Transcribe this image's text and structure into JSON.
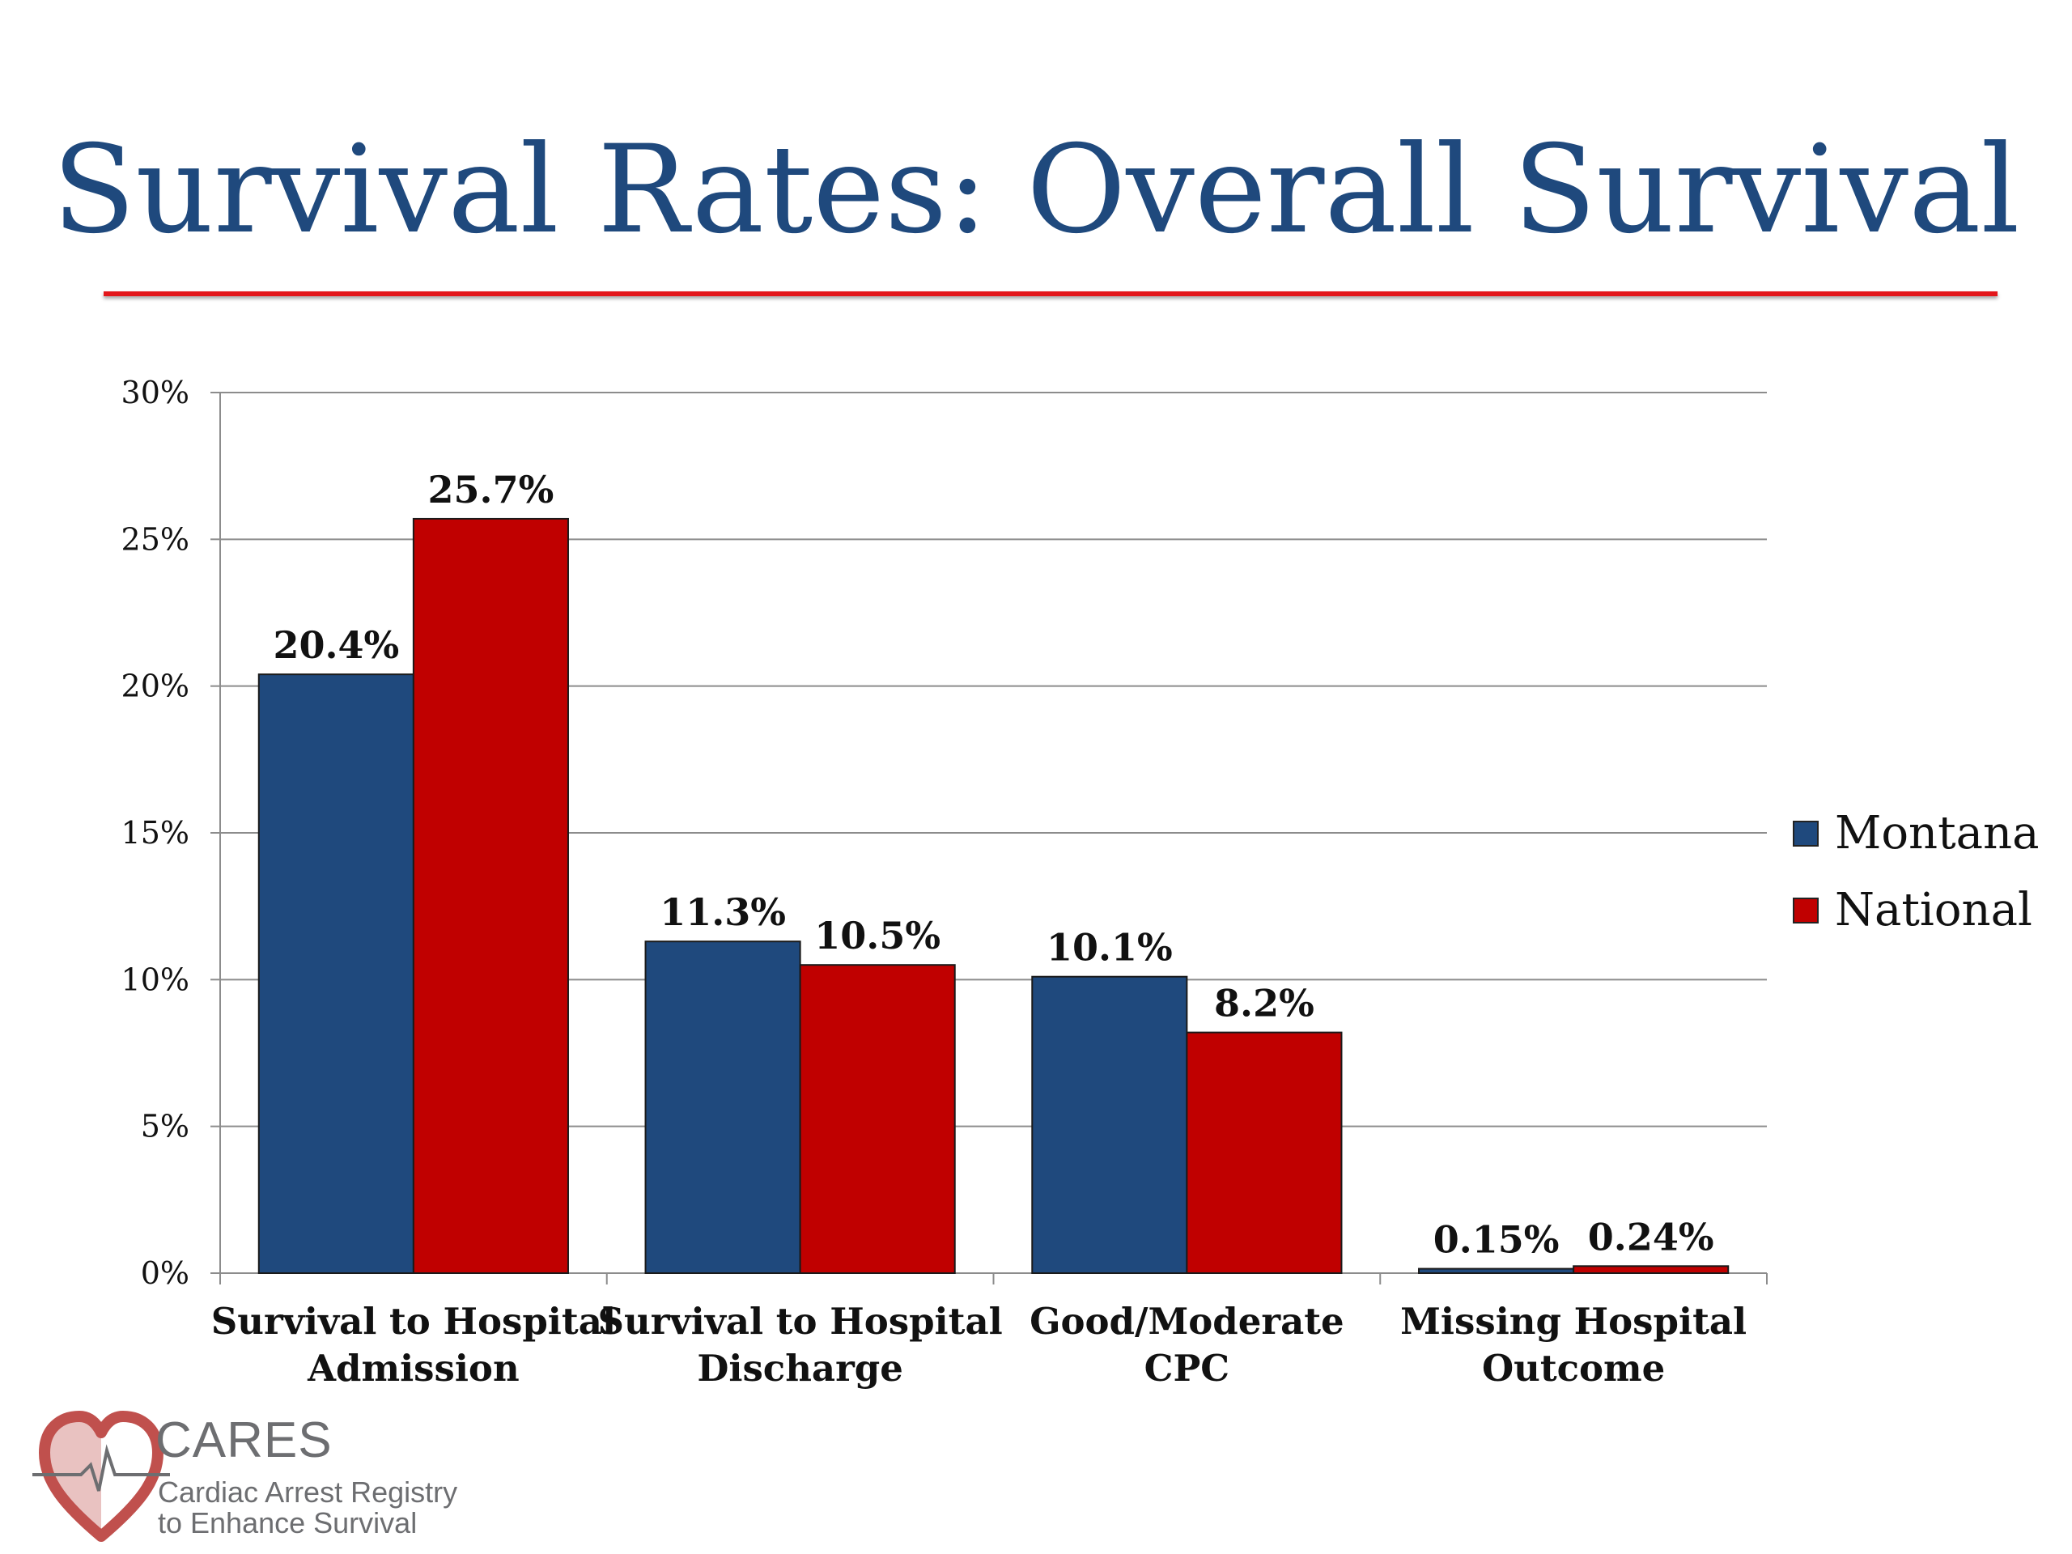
{
  "slide": {
    "title": "Survival Rates: Overall Survival"
  },
  "chart_data": {
    "type": "bar",
    "categories": [
      [
        "Survival to Hospital",
        "Admission"
      ],
      [
        "Survival to Hospital",
        "Discharge"
      ],
      [
        "Good/Moderate",
        "CPC"
      ],
      [
        "Missing Hospital",
        "Outcome"
      ]
    ],
    "series": [
      {
        "name": "Montana",
        "color": "#1f497d",
        "values": [
          20.4,
          11.3,
          10.1,
          0.15
        ],
        "labels": [
          "20.4%",
          "11.3%",
          "10.1%",
          "0.15%"
        ]
      },
      {
        "name": "National",
        "color": "#c00000",
        "values": [
          25.7,
          10.5,
          8.2,
          0.24
        ],
        "labels": [
          "25.7%",
          "10.5%",
          "8.2%",
          "0.24%"
        ]
      }
    ],
    "ylim": [
      0,
      30
    ],
    "yticks": [
      0,
      5,
      10,
      15,
      20,
      25,
      30
    ],
    "ytick_labels": [
      "0%",
      "5%",
      "10%",
      "15%",
      "20%",
      "25%",
      "30%"
    ],
    "grid": true,
    "legend_position": "right"
  },
  "logo": {
    "name": "CARES",
    "line1": "Cardiac Arrest Registry",
    "line2": "to Enhance Survival",
    "colors": {
      "heart": "#c0504d",
      "text": "#6d6e71"
    }
  }
}
